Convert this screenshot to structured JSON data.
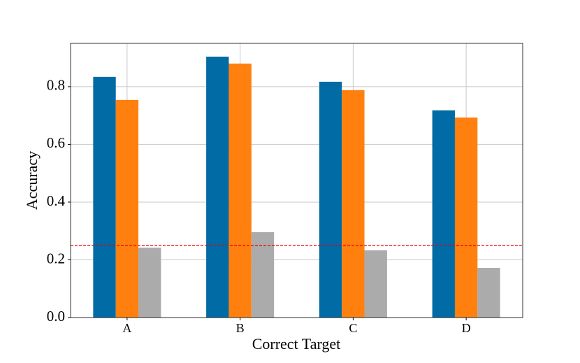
{
  "chart_data": {
    "type": "bar",
    "xlabel": "Correct Target",
    "ylabel": "Accuracy",
    "categories": [
      "A",
      "B",
      "C",
      "D"
    ],
    "series": [
      {
        "color": "#006ba4",
        "values": [
          0.834,
          0.904,
          0.817,
          0.718
        ]
      },
      {
        "color": "#ff800e",
        "values": [
          0.754,
          0.88,
          0.788,
          0.693
        ]
      },
      {
        "color": "#ababab",
        "values": [
          0.242,
          0.296,
          0.233,
          0.172
        ]
      }
    ],
    "ylim": [
      0,
      0.95
    ],
    "yticks": [
      {
        "value": 0,
        "label": "0.0"
      },
      0.2,
      0.4,
      0.6,
      0.8
    ],
    "grid": true,
    "hline": {
      "value": 0.25,
      "color": "#e8000b",
      "style": "dashed"
    }
  }
}
